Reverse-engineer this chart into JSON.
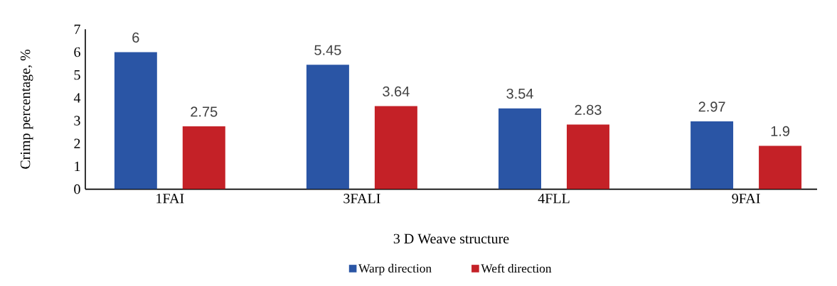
{
  "chart_data": {
    "type": "bar",
    "xlabel": "3 D Weave structure",
    "ylabel": "Crimp percentage, %",
    "categories": [
      "1FAI",
      "3FALI",
      "4FLL",
      "9FAI"
    ],
    "series": [
      {
        "name": "Warp direction",
        "color": "#2a55a5",
        "values": [
          6,
          5.45,
          3.54,
          2.97
        ]
      },
      {
        "name": "Weft direction",
        "color": "#c42127",
        "values": [
          2.75,
          3.64,
          2.83,
          1.9
        ]
      }
    ],
    "ylim": [
      0,
      7
    ],
    "yticks": [
      0,
      1,
      2,
      3,
      4,
      5,
      6,
      7
    ],
    "data_labels": true,
    "legend": "bottom",
    "grid": false
  }
}
